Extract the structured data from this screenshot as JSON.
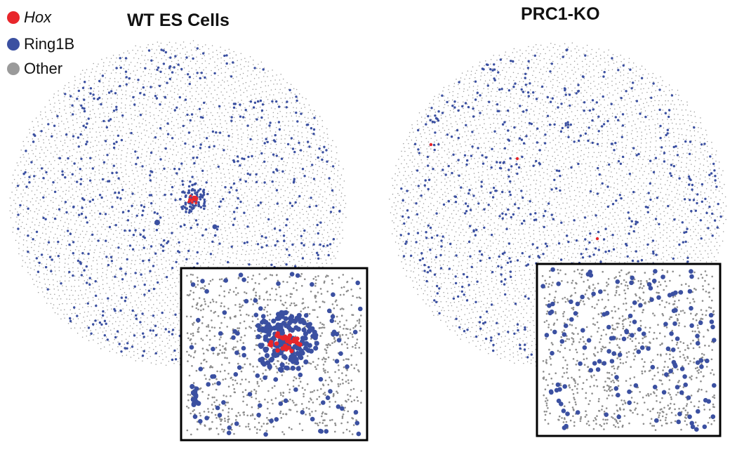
{
  "legend": [
    {
      "label": "Hox",
      "color": "#e8262b",
      "italic": true
    },
    {
      "label": "Ring1B",
      "color": "#3b50a1"
    },
    {
      "label": "Other",
      "color": "#9a9a9a"
    }
  ],
  "panels": [
    {
      "title": "WT ES Cells",
      "hox_cluster": true
    },
    {
      "title": "PRC1-KO",
      "hox_cluster": false
    }
  ],
  "colors": {
    "hox": "#e8262b",
    "ring1b": "#3b50a1",
    "other": "#9a9a9a",
    "inset_border": "#000000"
  }
}
